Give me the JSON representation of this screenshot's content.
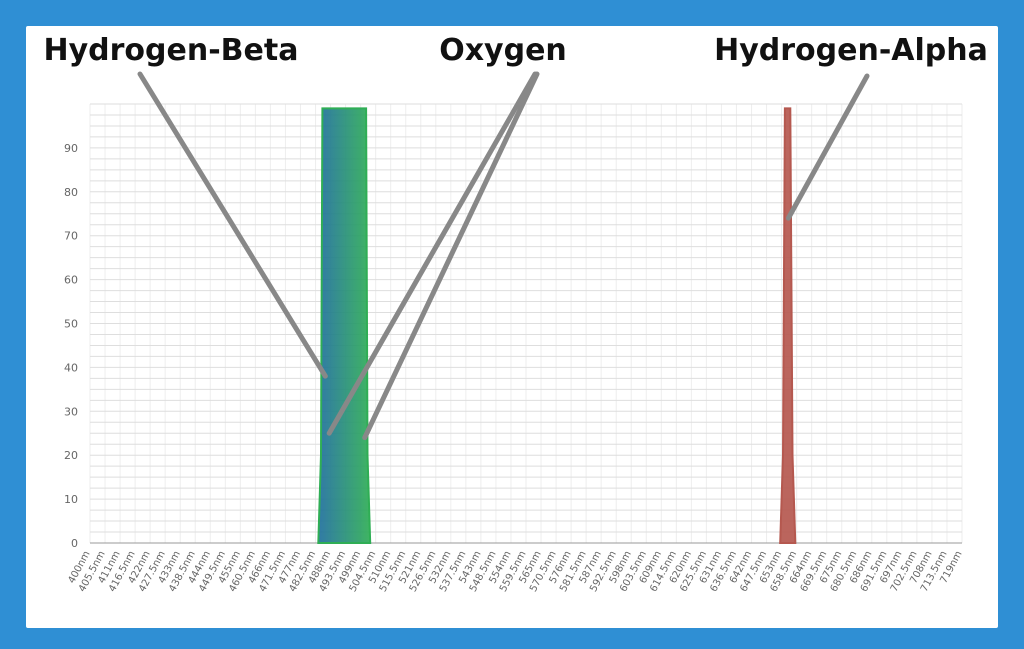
{
  "chart_data": {
    "type": "area",
    "title": "",
    "xlabel": "",
    "ylabel": "",
    "ylim": [
      0,
      100
    ],
    "yticks": [
      0,
      10,
      20,
      30,
      40,
      50,
      60,
      70,
      80,
      90
    ],
    "grid": true,
    "x_range_nm": [
      400,
      719
    ],
    "categories": [
      "400nm",
      "405.5nm",
      "411nm",
      "416.5nm",
      "422nm",
      "427.5nm",
      "433nm",
      "438.5nm",
      "444nm",
      "449.5nm",
      "455nm",
      "460.5nm",
      "466nm",
      "471.5nm",
      "477nm",
      "482.5nm",
      "488nm",
      "493.5nm",
      "499nm",
      "504.5nm",
      "510nm",
      "515.5nm",
      "521nm",
      "526.5nm",
      "532nm",
      "537.5nm",
      "543nm",
      "548.5nm",
      "554nm",
      "559.5nm",
      "565nm",
      "570.5nm",
      "576nm",
      "581.5nm",
      "587nm",
      "592.5nm",
      "598nm",
      "603.5nm",
      "609nm",
      "614.5nm",
      "620nm",
      "625.5nm",
      "631nm",
      "636.5nm",
      "642nm",
      "647.5nm",
      "653nm",
      "658.5nm",
      "664nm",
      "669.5nm",
      "675nm",
      "680.5nm",
      "686nm",
      "691.5nm",
      "697nm",
      "702.5nm",
      "708nm",
      "713.5nm",
      "719nm"
    ],
    "series": [
      {
        "color": "#1f6f9e",
        "color_end": "#2fae55",
        "points": [
          [
            483.5,
            0
          ],
          [
            484.5,
            20
          ],
          [
            485,
            99
          ],
          [
            501,
            99
          ],
          [
            501.5,
            20
          ],
          [
            502.5,
            0
          ]
        ]
      },
      {
        "color": "#b5584f",
        "points": [
          [
            652.5,
            0
          ],
          [
            653.5,
            20
          ],
          [
            654.2,
            99
          ],
          [
            656.2,
            99
          ],
          [
            657,
            20
          ],
          [
            658,
            0
          ]
        ]
      }
    ],
    "annotations": [
      {
        "text": "Hydrogen-Beta",
        "target": [
          486.1,
          38
        ]
      },
      {
        "text": "Oxygen",
        "targets": [
          [
            487.5,
            25
          ],
          [
            500.5,
            24
          ]
        ]
      },
      {
        "text": "Hydrogen-Alpha",
        "target": [
          655.5,
          74
        ]
      }
    ]
  }
}
